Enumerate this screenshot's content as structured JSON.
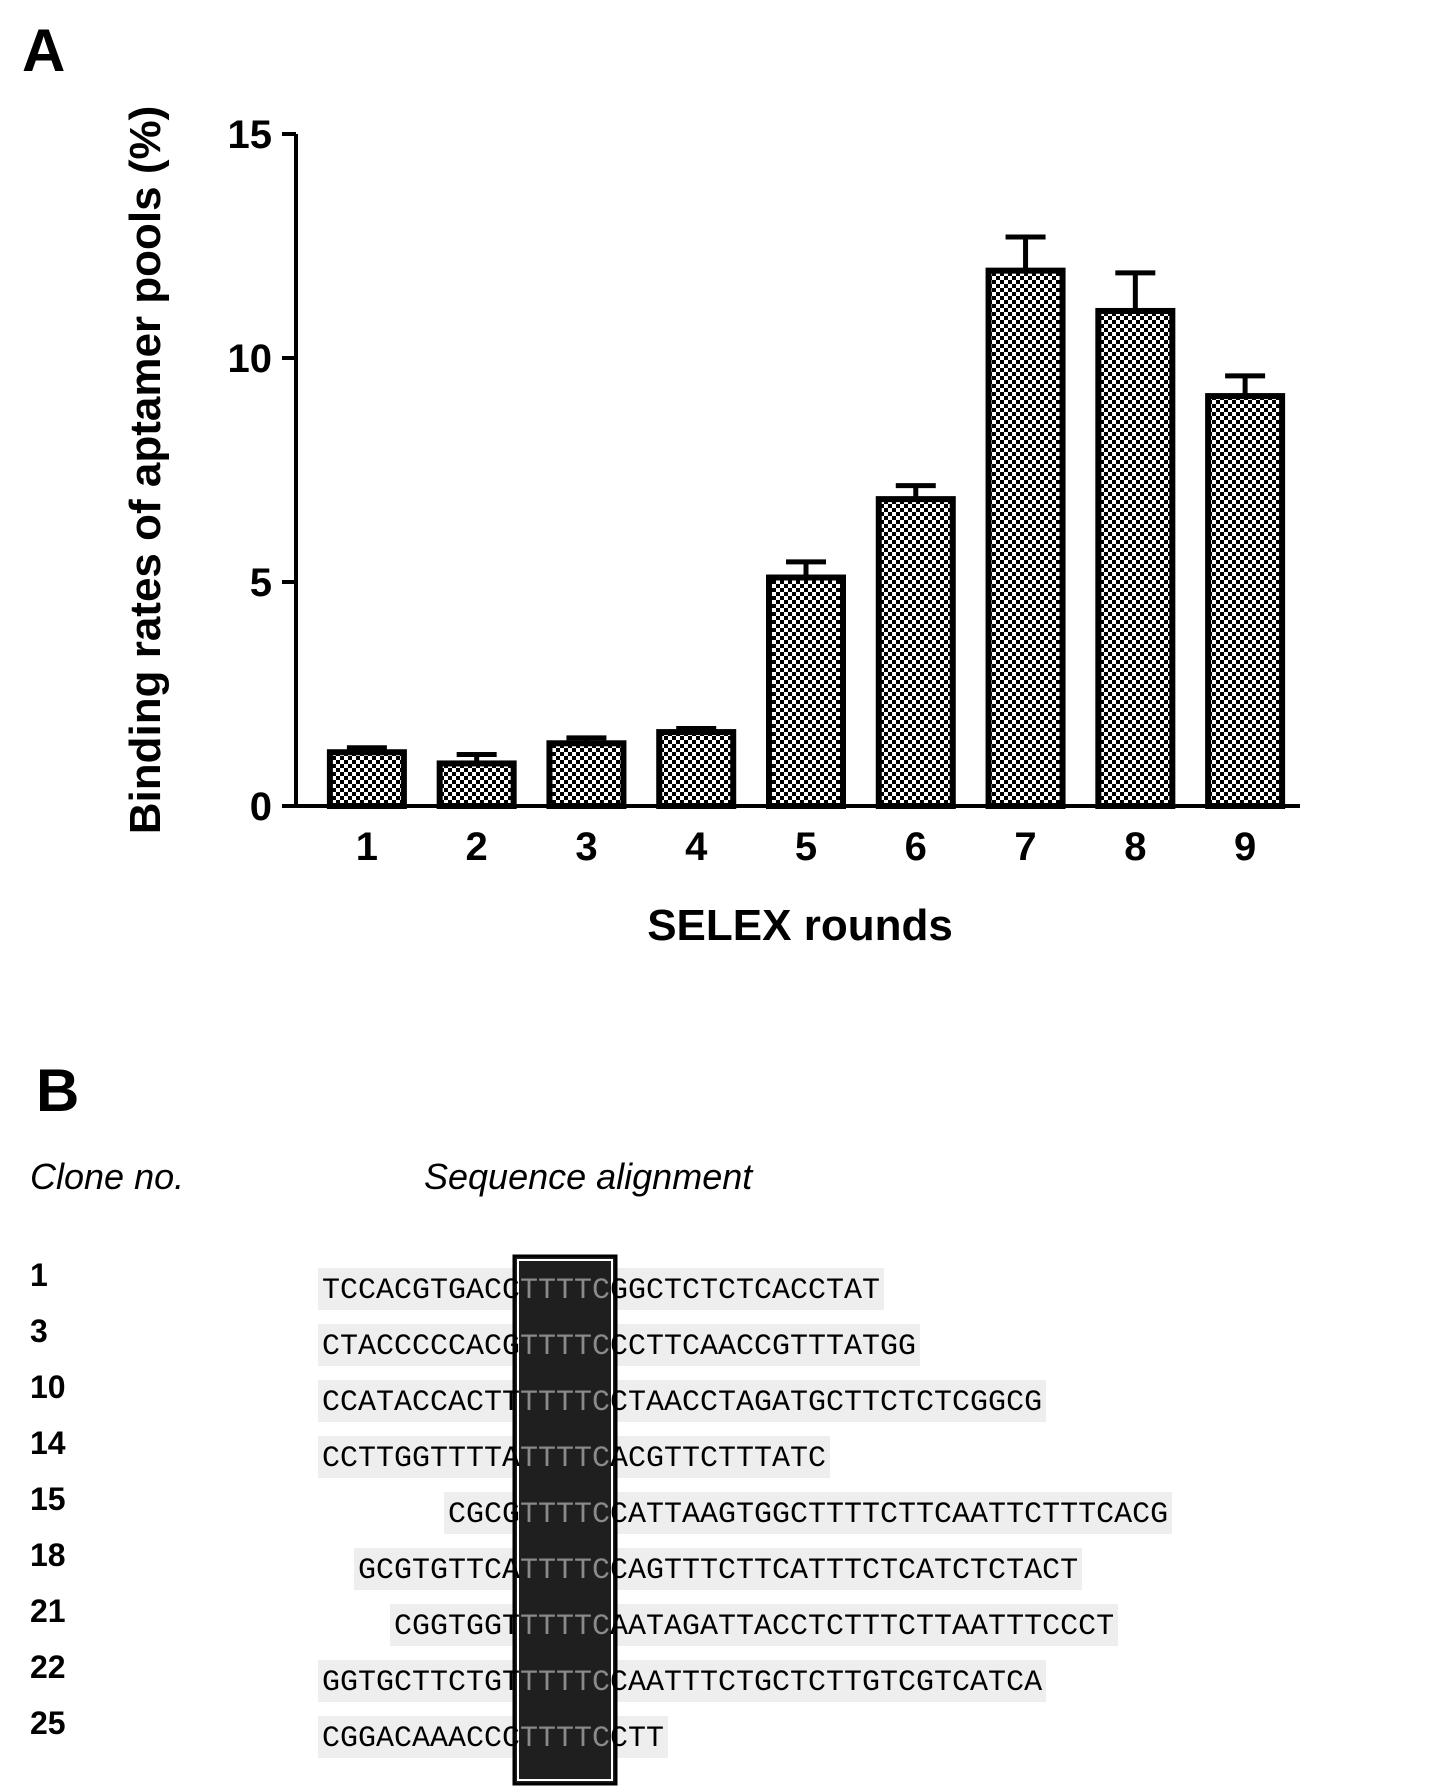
{
  "panel_a": {
    "letter": "A"
  },
  "chart_data": {
    "type": "bar",
    "categories": [
      "1",
      "2",
      "3",
      "4",
      "5",
      "6",
      "7",
      "8",
      "9"
    ],
    "values": [
      1.2,
      0.95,
      1.4,
      1.65,
      5.1,
      6.85,
      11.95,
      11.05,
      9.15
    ],
    "errors": [
      0.1,
      0.2,
      0.12,
      0.08,
      0.35,
      0.3,
      0.75,
      0.85,
      0.45
    ],
    "title": "",
    "xlabel": "SELEX rounds",
    "ylabel": "Binding rates of aptamer pools (%)",
    "ylim": [
      0,
      15
    ],
    "yticks": [
      "0",
      "5",
      "10",
      "15"
    ],
    "grid": false,
    "fill": "checkered"
  },
  "panel_b": {
    "letter": "B",
    "col_clone": "Clone no.",
    "col_sequence": "Sequence alignment",
    "motif": "TTTTC",
    "rows": [
      {
        "clone": "1",
        "left": "TCCACGTGACC",
        "right": "GGCTCTCTCACCTAT"
      },
      {
        "clone": "3",
        "left": "CTACCCCCACG",
        "right": "CCTTCAACCGTTTATGG"
      },
      {
        "clone": "10",
        "left": "CCATACCACTT",
        "right": "CTAACCTAGATGCTTCTCTCGGCG"
      },
      {
        "clone": "14",
        "left": "CCTTGGTTTTA",
        "right": "ACGTTCTTTATC"
      },
      {
        "clone": "15",
        "left": "CGCG",
        "right": "CATTAAGTGGCTTTTCTTCAATTCTTTCACG"
      },
      {
        "clone": "18",
        "left": "GCGTGTTCA",
        "right": "CAGTTTCTTCATTTCTCATCTCTACT"
      },
      {
        "clone": "21",
        "left": "CGGTGGT",
        "right": "AATAGATTACCTCTTTCTTAATTTCCCT"
      },
      {
        "clone": "22",
        "left": "GGTGCTTCTGT",
        "right": "CAATTTCTGCTCTTGTCGTCATCA"
      },
      {
        "clone": "25",
        "left": "CGGACAAACCC",
        "right": "CTT"
      }
    ]
  },
  "colors": {
    "motif_block": "#1f1f1f",
    "motif_text": "#8a8a8a",
    "shade": "#eeeeee",
    "bar_stroke": "#000000"
  }
}
